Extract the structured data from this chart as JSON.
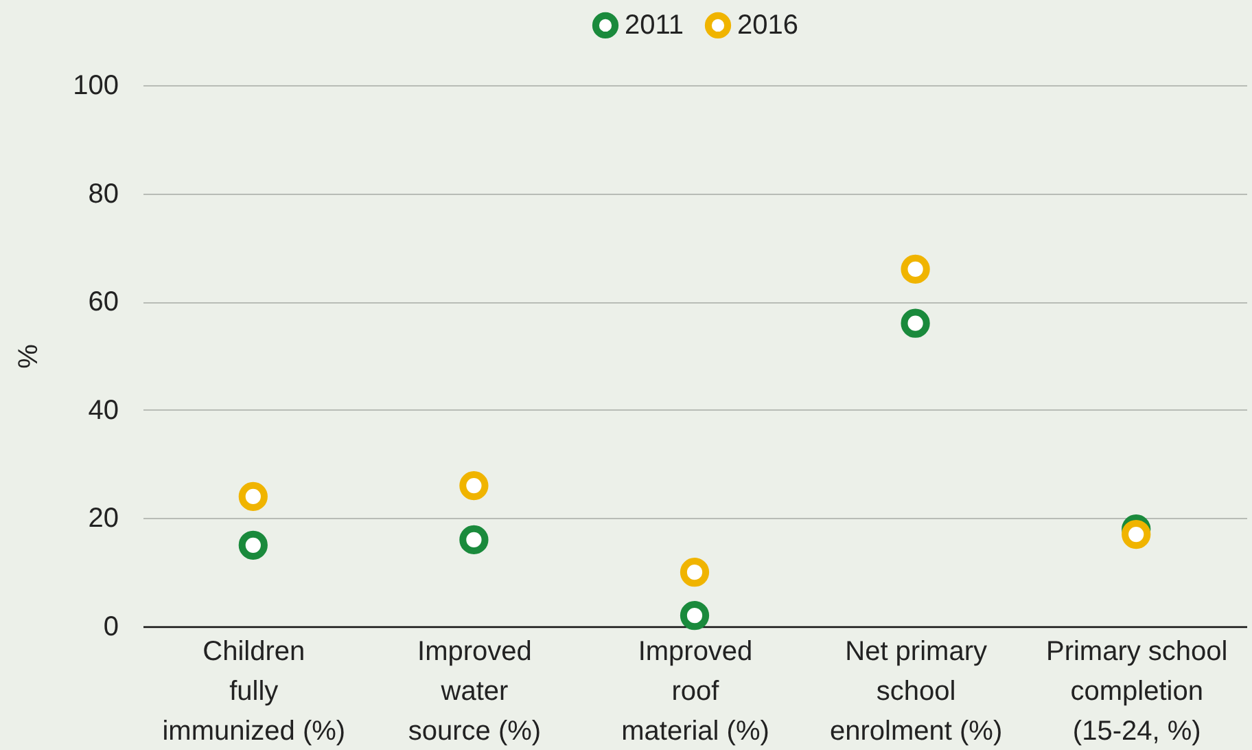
{
  "chart_data": {
    "type": "scatter",
    "ylabel": "%",
    "categories": [
      "Children fully immunized (%)",
      "Improved water source (%)",
      "Improved roof material (%)",
      "Net primary school enrolment (%)",
      "Primary school completion (15-24, %)"
    ],
    "series": [
      {
        "name": "2011",
        "color": "#1a8a3c",
        "values": [
          15,
          16,
          2,
          56,
          18
        ]
      },
      {
        "name": "2016",
        "color": "#f0b400",
        "values": [
          24,
          26,
          10,
          66,
          17
        ]
      }
    ],
    "ylim": [
      0,
      100
    ],
    "yticks": [
      0,
      20,
      40,
      60,
      80,
      100
    ],
    "grid": "y",
    "legend": "top",
    "marker": "circle"
  }
}
